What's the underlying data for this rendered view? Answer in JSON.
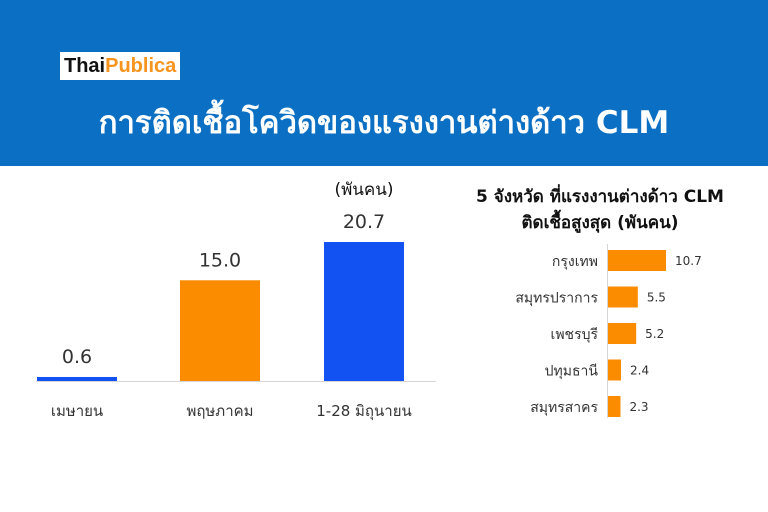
{
  "header": {
    "logo_part1": "Thai",
    "logo_part2": "Publica",
    "title": "การติดเชื้อโควิดของแรงงานต่างด้าว CLM",
    "background_color": "#0b6fc4",
    "logo_accent_color": "#f7941d"
  },
  "chart_data": [
    {
      "type": "bar",
      "unit_label": "(พันคน)",
      "categories": [
        "เมษายน",
        "พฤษภาคม",
        "1-28 มิถุนายน"
      ],
      "values": [
        0.6,
        15.0,
        20.7
      ],
      "value_labels": [
        "0.6",
        "15.0",
        "20.7"
      ],
      "colors": [
        "#1352f2",
        "#fb8c00",
        "#1352f2"
      ],
      "ylim": [
        0,
        20.7
      ],
      "grid": false
    },
    {
      "type": "bar",
      "orientation": "horizontal",
      "title_line1": "5 จังหวัด ที่แรงงานต่างด้าว CLM",
      "title_line2": "ติดเชื้อสูงสุด (พันคน)",
      "categories": [
        "กรุงเทพ",
        "สมุทรปราการ",
        "เพชรบุรี",
        "ปทุมธานี",
        "สมุทรสาคร"
      ],
      "values": [
        10.7,
        5.5,
        5.2,
        2.4,
        2.3
      ],
      "value_labels": [
        "10.7",
        "5.5",
        "5.2",
        "2.4",
        "2.3"
      ],
      "color": "#fb8c00",
      "xlim": [
        0,
        10.7
      ],
      "grid": false
    }
  ]
}
